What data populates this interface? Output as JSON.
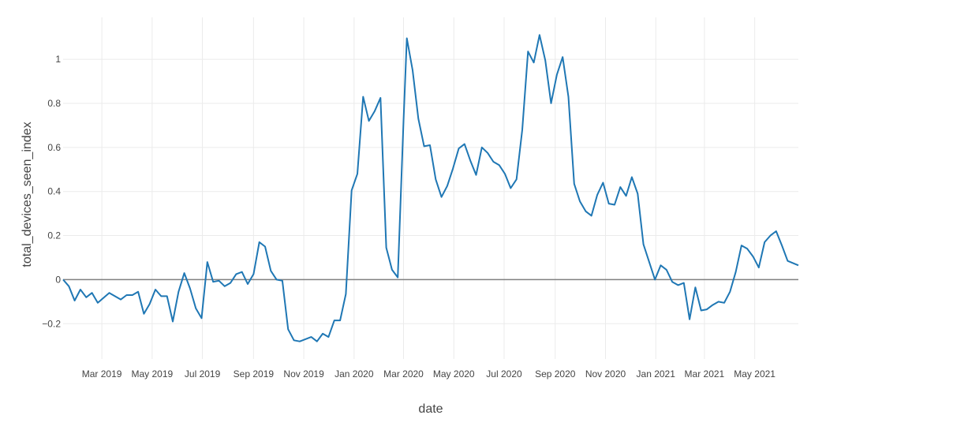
{
  "chart_data": {
    "type": "line",
    "xlabel": "date",
    "ylabel": "total_devices_seen_index",
    "x_tick_labels": [
      "Mar 2019",
      "May 2019",
      "Jul 2019",
      "Sep 2019",
      "Nov 2019",
      "Jan 2020",
      "Mar 2020",
      "May 2020",
      "Jul 2020",
      "Sep 2020",
      "Nov 2020",
      "Jan 2021",
      "Mar 2021",
      "May 2021"
    ],
    "x_tick_dates": [
      "2019-03-01",
      "2019-05-01",
      "2019-07-01",
      "2019-09-01",
      "2019-11-01",
      "2020-01-01",
      "2020-03-01",
      "2020-05-01",
      "2020-07-01",
      "2020-09-01",
      "2020-11-01",
      "2021-01-01",
      "2021-03-01",
      "2021-05-01"
    ],
    "y_ticks": [
      -0.2,
      0,
      0.2,
      0.4,
      0.6,
      0.8,
      1
    ],
    "y_tick_labels": [
      "−0.2",
      "0",
      "0.2",
      "0.4",
      "0.6",
      "0.8",
      "1"
    ],
    "xlim": [
      "2019-01-13",
      "2021-06-23"
    ],
    "ylim": [
      -0.36,
      1.19
    ],
    "grid": true,
    "zero_line": true,
    "line_color": "#1f77b4",
    "series": [
      {
        "points": [
          [
            "2019-01-13",
            0.0
          ],
          [
            "2019-01-20",
            -0.03
          ],
          [
            "2019-01-27",
            -0.095
          ],
          [
            "2019-02-03",
            -0.045
          ],
          [
            "2019-02-10",
            -0.08
          ],
          [
            "2019-02-17",
            -0.06
          ],
          [
            "2019-02-24",
            -0.105
          ],
          [
            "2019-03-10",
            -0.06
          ],
          [
            "2019-03-24",
            -0.09
          ],
          [
            "2019-03-31",
            -0.07
          ],
          [
            "2019-04-07",
            -0.07
          ],
          [
            "2019-04-14",
            -0.055
          ],
          [
            "2019-04-21",
            -0.155
          ],
          [
            "2019-04-28",
            -0.11
          ],
          [
            "2019-05-05",
            -0.045
          ],
          [
            "2019-05-12",
            -0.075
          ],
          [
            "2019-05-19",
            -0.075
          ],
          [
            "2019-05-26",
            -0.19
          ],
          [
            "2019-06-02",
            -0.055
          ],
          [
            "2019-06-09",
            0.03
          ],
          [
            "2019-06-16",
            -0.04
          ],
          [
            "2019-06-23",
            -0.13
          ],
          [
            "2019-06-30",
            -0.175
          ],
          [
            "2019-07-07",
            0.08
          ],
          [
            "2019-07-14",
            -0.01
          ],
          [
            "2019-07-21",
            -0.005
          ],
          [
            "2019-07-28",
            -0.03
          ],
          [
            "2019-08-04",
            -0.015
          ],
          [
            "2019-08-11",
            0.025
          ],
          [
            "2019-08-18",
            0.035
          ],
          [
            "2019-08-25",
            -0.02
          ],
          [
            "2019-09-01",
            0.025
          ],
          [
            "2019-09-08",
            0.17
          ],
          [
            "2019-09-15",
            0.15
          ],
          [
            "2019-09-22",
            0.04
          ],
          [
            "2019-09-29",
            0.0
          ],
          [
            "2019-10-06",
            -0.005
          ],
          [
            "2019-10-13",
            -0.225
          ],
          [
            "2019-10-20",
            -0.275
          ],
          [
            "2019-10-27",
            -0.28
          ],
          [
            "2019-11-10",
            -0.26
          ],
          [
            "2019-11-17",
            -0.28
          ],
          [
            "2019-11-24",
            -0.245
          ],
          [
            "2019-12-01",
            -0.26
          ],
          [
            "2019-12-08",
            -0.185
          ],
          [
            "2019-12-15",
            -0.185
          ],
          [
            "2019-12-22",
            -0.065
          ],
          [
            "2019-12-29",
            0.405
          ],
          [
            "2020-01-05",
            0.48
          ],
          [
            "2020-01-12",
            0.83
          ],
          [
            "2020-01-19",
            0.72
          ],
          [
            "2020-01-26",
            0.765
          ],
          [
            "2020-02-02",
            0.825
          ],
          [
            "2020-02-09",
            0.145
          ],
          [
            "2020-02-16",
            0.045
          ],
          [
            "2020-02-23",
            0.01
          ],
          [
            "2020-03-01",
            0.72
          ],
          [
            "2020-03-05",
            1.095
          ],
          [
            "2020-03-12",
            0.95
          ],
          [
            "2020-03-19",
            0.73
          ],
          [
            "2020-03-26",
            0.605
          ],
          [
            "2020-04-02",
            0.61
          ],
          [
            "2020-04-09",
            0.455
          ],
          [
            "2020-04-16",
            0.375
          ],
          [
            "2020-04-23",
            0.425
          ],
          [
            "2020-04-30",
            0.505
          ],
          [
            "2020-05-07",
            0.595
          ],
          [
            "2020-05-14",
            0.615
          ],
          [
            "2020-05-21",
            0.54
          ],
          [
            "2020-05-28",
            0.475
          ],
          [
            "2020-06-04",
            0.6
          ],
          [
            "2020-06-11",
            0.575
          ],
          [
            "2020-06-18",
            0.535
          ],
          [
            "2020-06-25",
            0.52
          ],
          [
            "2020-07-02",
            0.48
          ],
          [
            "2020-07-09",
            0.415
          ],
          [
            "2020-07-16",
            0.455
          ],
          [
            "2020-07-23",
            0.68
          ],
          [
            "2020-07-30",
            1.035
          ],
          [
            "2020-08-06",
            0.985
          ],
          [
            "2020-08-13",
            1.11
          ],
          [
            "2020-08-20",
            0.995
          ],
          [
            "2020-08-27",
            0.8
          ],
          [
            "2020-09-03",
            0.93
          ],
          [
            "2020-09-10",
            1.01
          ],
          [
            "2020-09-17",
            0.83
          ],
          [
            "2020-09-24",
            0.435
          ],
          [
            "2020-10-01",
            0.355
          ],
          [
            "2020-10-08",
            0.31
          ],
          [
            "2020-10-15",
            0.29
          ],
          [
            "2020-10-22",
            0.385
          ],
          [
            "2020-10-29",
            0.44
          ],
          [
            "2020-11-05",
            0.345
          ],
          [
            "2020-11-12",
            0.34
          ],
          [
            "2020-11-19",
            0.42
          ],
          [
            "2020-11-26",
            0.38
          ],
          [
            "2020-12-03",
            0.465
          ],
          [
            "2020-12-10",
            0.39
          ],
          [
            "2020-12-17",
            0.16
          ],
          [
            "2020-12-24",
            0.08
          ],
          [
            "2020-12-31",
            0.0
          ],
          [
            "2021-01-07",
            0.065
          ],
          [
            "2021-01-14",
            0.045
          ],
          [
            "2021-01-21",
            -0.01
          ],
          [
            "2021-01-28",
            -0.025
          ],
          [
            "2021-02-04",
            -0.015
          ],
          [
            "2021-02-11",
            -0.18
          ],
          [
            "2021-02-18",
            -0.035
          ],
          [
            "2021-02-25",
            -0.14
          ],
          [
            "2021-03-04",
            -0.135
          ],
          [
            "2021-03-11",
            -0.115
          ],
          [
            "2021-03-18",
            -0.1
          ],
          [
            "2021-03-25",
            -0.105
          ],
          [
            "2021-04-01",
            -0.055
          ],
          [
            "2021-04-08",
            0.035
          ],
          [
            "2021-04-15",
            0.155
          ],
          [
            "2021-04-22",
            0.14
          ],
          [
            "2021-04-29",
            0.105
          ],
          [
            "2021-05-06",
            0.055
          ],
          [
            "2021-05-13",
            0.17
          ],
          [
            "2021-05-20",
            0.2
          ],
          [
            "2021-05-27",
            0.22
          ],
          [
            "2021-06-03",
            0.155
          ],
          [
            "2021-06-10",
            0.085
          ],
          [
            "2021-06-23",
            0.065
          ]
        ]
      }
    ]
  }
}
